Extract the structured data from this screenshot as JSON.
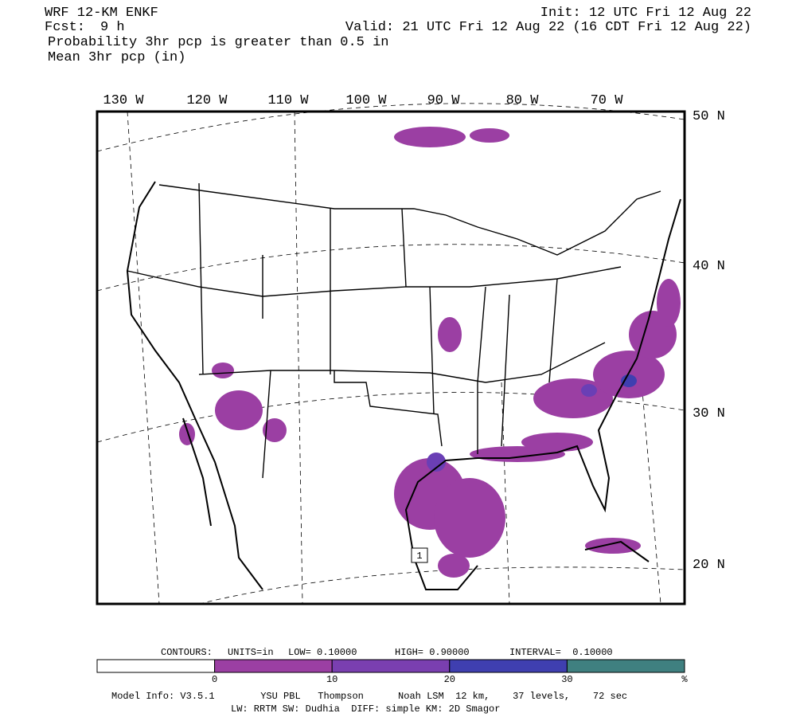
{
  "header": {
    "model": "WRF 12-KM ENKF",
    "init": "Init: 12 UTC Fri 12 Aug 22",
    "fcst_label": "Fcst:",
    "fcst": "9 h",
    "valid": "Valid: 21 UTC Fri 12 Aug 22 (16 CDT Fri 12 Aug 22)",
    "field1": "Probability 3hr pcp is greater than 0.5 in",
    "field2": "Mean 3hr pcp (in)"
  },
  "map": {
    "lon_labels": [
      "130 W",
      "120 W",
      "110 W",
      "100 W",
      "90 W",
      "80 W",
      "70 W"
    ],
    "lat_labels": [
      "50 N",
      "40 N",
      "30 N",
      "20 N"
    ],
    "contour_label": "1"
  },
  "contours": {
    "label": "CONTOURS:",
    "units": "UNITS=in",
    "low": "LOW= 0.10000",
    "high": "HIGH= 0.90000",
    "interval": "INTERVAL=  0.10000"
  },
  "colorbar": {
    "colors": [
      "#ffffff",
      "#9b3fa3",
      "#7a3fb0",
      "#3f3fb0",
      "#3f8080"
    ],
    "ticks": [
      0,
      10,
      20,
      30
    ],
    "unit": "%"
  },
  "footer": {
    "line1": "Model Info: V3.5.1        YSU PBL   Thompson      Noah LSM  12 km,    37 levels,    72 sec",
    "line2": "LW: RRTM SW: Dudhia  DIFF: simple KM: 2D Smagor"
  }
}
